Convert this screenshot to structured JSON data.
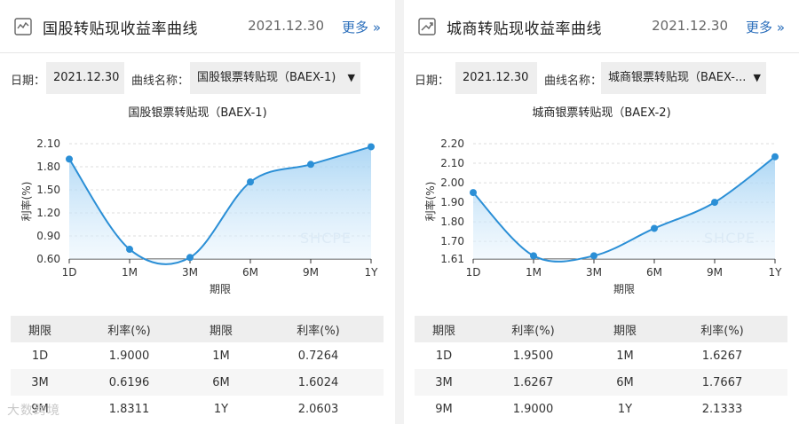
{
  "colors": {
    "line": "#2b8fd6",
    "fill_top": "#9fd0f3",
    "fill_bottom": "#eaf5fd",
    "link": "#2a6ebb"
  },
  "more_label": "更多",
  "more_icon": "double-chevron-right-icon",
  "bottom_watermark": "大数跨境",
  "table_headers": [
    "期限",
    "利率(%)",
    "期限",
    "利率(%)"
  ],
  "panels": [
    {
      "id": "left",
      "icon": "line-chart-icon",
      "title": "国股转贴现收益率曲线",
      "date": "2021.12.30",
      "date_label": "日期：",
      "date_value": "2021.12.30",
      "curve_label": "曲线名称：",
      "curve_value": "国股银票转贴现（BAEX-1)",
      "table_rows": [
        [
          "1D",
          "1.9000",
          "1M",
          "0.7264"
        ],
        [
          "3M",
          "0.6196",
          "6M",
          "1.6024"
        ],
        [
          "9M",
          "1.8311",
          "1Y",
          "2.0603"
        ]
      ]
    },
    {
      "id": "right",
      "icon": "trend-up-icon",
      "title": "城商转贴现收益率曲线",
      "date": "2021.12.30",
      "date_label": "日期：",
      "date_value": "2021.12.30",
      "curve_label": "曲线名称：",
      "curve_value": "城商银票转贴现（BAEX-...",
      "table_rows": [
        [
          "1D",
          "1.9500",
          "1M",
          "1.6267"
        ],
        [
          "3M",
          "1.6267",
          "6M",
          "1.7667"
        ],
        [
          "9M",
          "1.9000",
          "1Y",
          "2.1333"
        ]
      ]
    }
  ],
  "chart_data": [
    {
      "type": "area",
      "title": "国股银票转贴现（BAEX-1)",
      "xlabel": "期限",
      "ylabel": "利率(%)",
      "categories": [
        "1D",
        "1M",
        "3M",
        "6M",
        "9M",
        "1Y"
      ],
      "series": [
        {
          "values": [
            1.9,
            0.7264,
            0.6196,
            1.6024,
            1.8311,
            2.0603
          ]
        }
      ],
      "yticks": [
        "0.60",
        "0.90",
        "1.20",
        "1.50",
        "1.80",
        "2.10"
      ],
      "ylim": [
        0.6,
        2.1
      ],
      "grid": true,
      "legend": "none",
      "watermark": "SHCPE"
    },
    {
      "type": "area",
      "title": "城商银票转贴现（BAEX-2)",
      "xlabel": "期限",
      "ylabel": "利率(%)",
      "categories": [
        "1D",
        "1M",
        "3M",
        "6M",
        "9M",
        "1Y"
      ],
      "series": [
        {
          "values": [
            1.95,
            1.6267,
            1.6267,
            1.7667,
            1.9,
            2.1333
          ]
        }
      ],
      "yticks": [
        "1.61",
        "1.70",
        "1.80",
        "1.90",
        "2.00",
        "2.10",
        "2.20"
      ],
      "ylim": [
        1.61,
        2.2
      ],
      "grid": true,
      "legend": "none",
      "watermark": "SHCPE"
    }
  ]
}
